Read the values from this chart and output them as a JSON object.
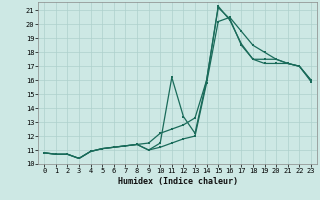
{
  "xlabel": "Humidex (Indice chaleur)",
  "xlim": [
    -0.5,
    23.5
  ],
  "ylim": [
    10.0,
    21.6
  ],
  "xticks": [
    0,
    1,
    2,
    3,
    4,
    5,
    6,
    7,
    8,
    9,
    10,
    11,
    12,
    13,
    14,
    15,
    16,
    17,
    18,
    19,
    20,
    21,
    22,
    23
  ],
  "yticks": [
    10,
    11,
    12,
    13,
    14,
    15,
    16,
    17,
    18,
    19,
    20,
    21
  ],
  "bg_color": "#cde8e4",
  "grid_color": "#aed0cc",
  "line_color": "#1a6b5a",
  "line1_x": [
    0,
    1,
    2,
    3,
    4,
    5,
    6,
    7,
    8,
    9,
    10,
    11,
    12,
    13,
    14,
    15,
    16,
    17,
    18,
    19,
    20,
    21,
    22,
    23
  ],
  "line1_y": [
    10.8,
    10.7,
    10.7,
    10.4,
    10.9,
    11.1,
    11.2,
    11.3,
    11.4,
    11.5,
    12.2,
    12.5,
    12.8,
    13.3,
    16.0,
    21.2,
    20.4,
    18.5,
    17.5,
    17.5,
    17.5,
    17.2,
    17.0,
    15.9
  ],
  "line2_x": [
    0,
    1,
    2,
    3,
    4,
    5,
    6,
    7,
    8,
    9,
    10,
    11,
    12,
    13,
    14,
    15,
    16,
    17,
    18,
    19,
    20,
    21,
    22,
    23
  ],
  "line2_y": [
    10.8,
    10.7,
    10.7,
    10.4,
    10.9,
    11.1,
    11.2,
    11.3,
    11.4,
    11.0,
    11.2,
    11.5,
    11.8,
    12.0,
    15.8,
    20.2,
    20.5,
    19.5,
    18.5,
    18.0,
    17.5,
    17.2,
    17.0,
    16.0
  ],
  "line3_x": [
    0,
    1,
    2,
    3,
    4,
    5,
    6,
    7,
    8,
    9,
    10,
    11,
    12,
    13,
    14,
    15,
    16,
    17,
    18,
    19,
    20,
    21,
    22,
    23
  ],
  "line3_y": [
    10.8,
    10.7,
    10.7,
    10.4,
    10.9,
    11.1,
    11.2,
    11.3,
    11.4,
    11.0,
    11.5,
    16.2,
    13.4,
    12.2,
    16.0,
    21.3,
    20.3,
    18.6,
    17.5,
    17.2,
    17.2,
    17.2,
    17.0,
    16.0
  ]
}
